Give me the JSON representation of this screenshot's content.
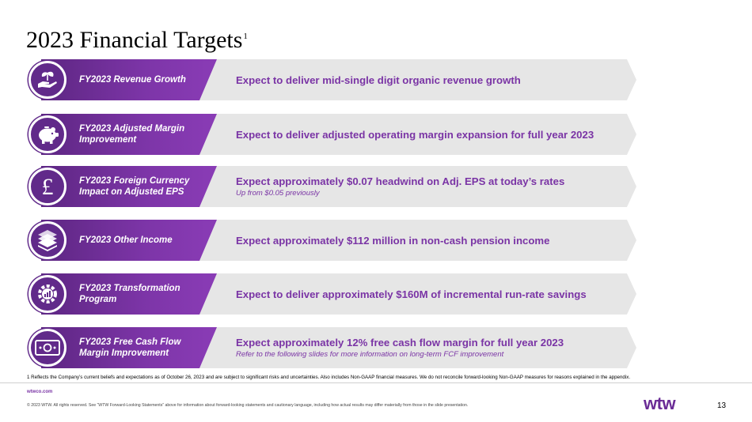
{
  "title": {
    "text": "2023 Financial Targets",
    "superscript": "1"
  },
  "colors": {
    "accent": "#612a8a",
    "banner": "#e6e6e6",
    "text_accent": "#7a34a5"
  },
  "rows": [
    {
      "label": "FY2023 Revenue Growth",
      "icon": "plant-hand-icon",
      "main": "Expect to deliver mid-single digit organic revenue growth",
      "sub": ""
    },
    {
      "label": "FY2023 Adjusted Margin Improvement",
      "icon": "piggy-bank-icon",
      "main": "Expect to deliver adjusted operating margin expansion for full year 2023",
      "sub": ""
    },
    {
      "label": "FY2023 Foreign Currency Impact on Adjusted EPS",
      "icon": "pound-sign-icon",
      "main": "Expect approximately $0.07 headwind on Adj. EPS at today’s rates",
      "sub": "Up from $0.05 previously"
    },
    {
      "label": "FY2023 Other Income",
      "icon": "cash-stack-icon",
      "main": "Expect approximately $112 million in non-cash pension income",
      "sub": ""
    },
    {
      "label": "FY2023 Transformation Program",
      "icon": "gear-chart-icon",
      "main": "Expect to deliver approximately $160M of incremental run-rate savings",
      "sub": ""
    },
    {
      "label": "FY2023 Free Cash Flow Margin Improvement",
      "icon": "banknote-icon",
      "main": "Expect approximately 12% free cash flow margin for full year 2023",
      "sub": "Refer to the following slides for more information on long-term FCF improvement"
    }
  ],
  "footnote": "1 Reflects the Company’s current beliefs and expectations as of October 26, 2023 and are subject to significant risks and uncertainties. Also includes Non-GAAP financial measures. We do not reconcile forward-looking Non-GAAP measures for reasons explained in the appendix.",
  "footer": {
    "site": "wtwco.com",
    "copyright": "© 2023 WTW. All rights reserved. See “WTW Forward-Looking Statements” above for information about forward-looking statements and cautionary language, including how actual results may differ materially from those in the slide presentation.",
    "logo": "wtw",
    "page": "13"
  }
}
